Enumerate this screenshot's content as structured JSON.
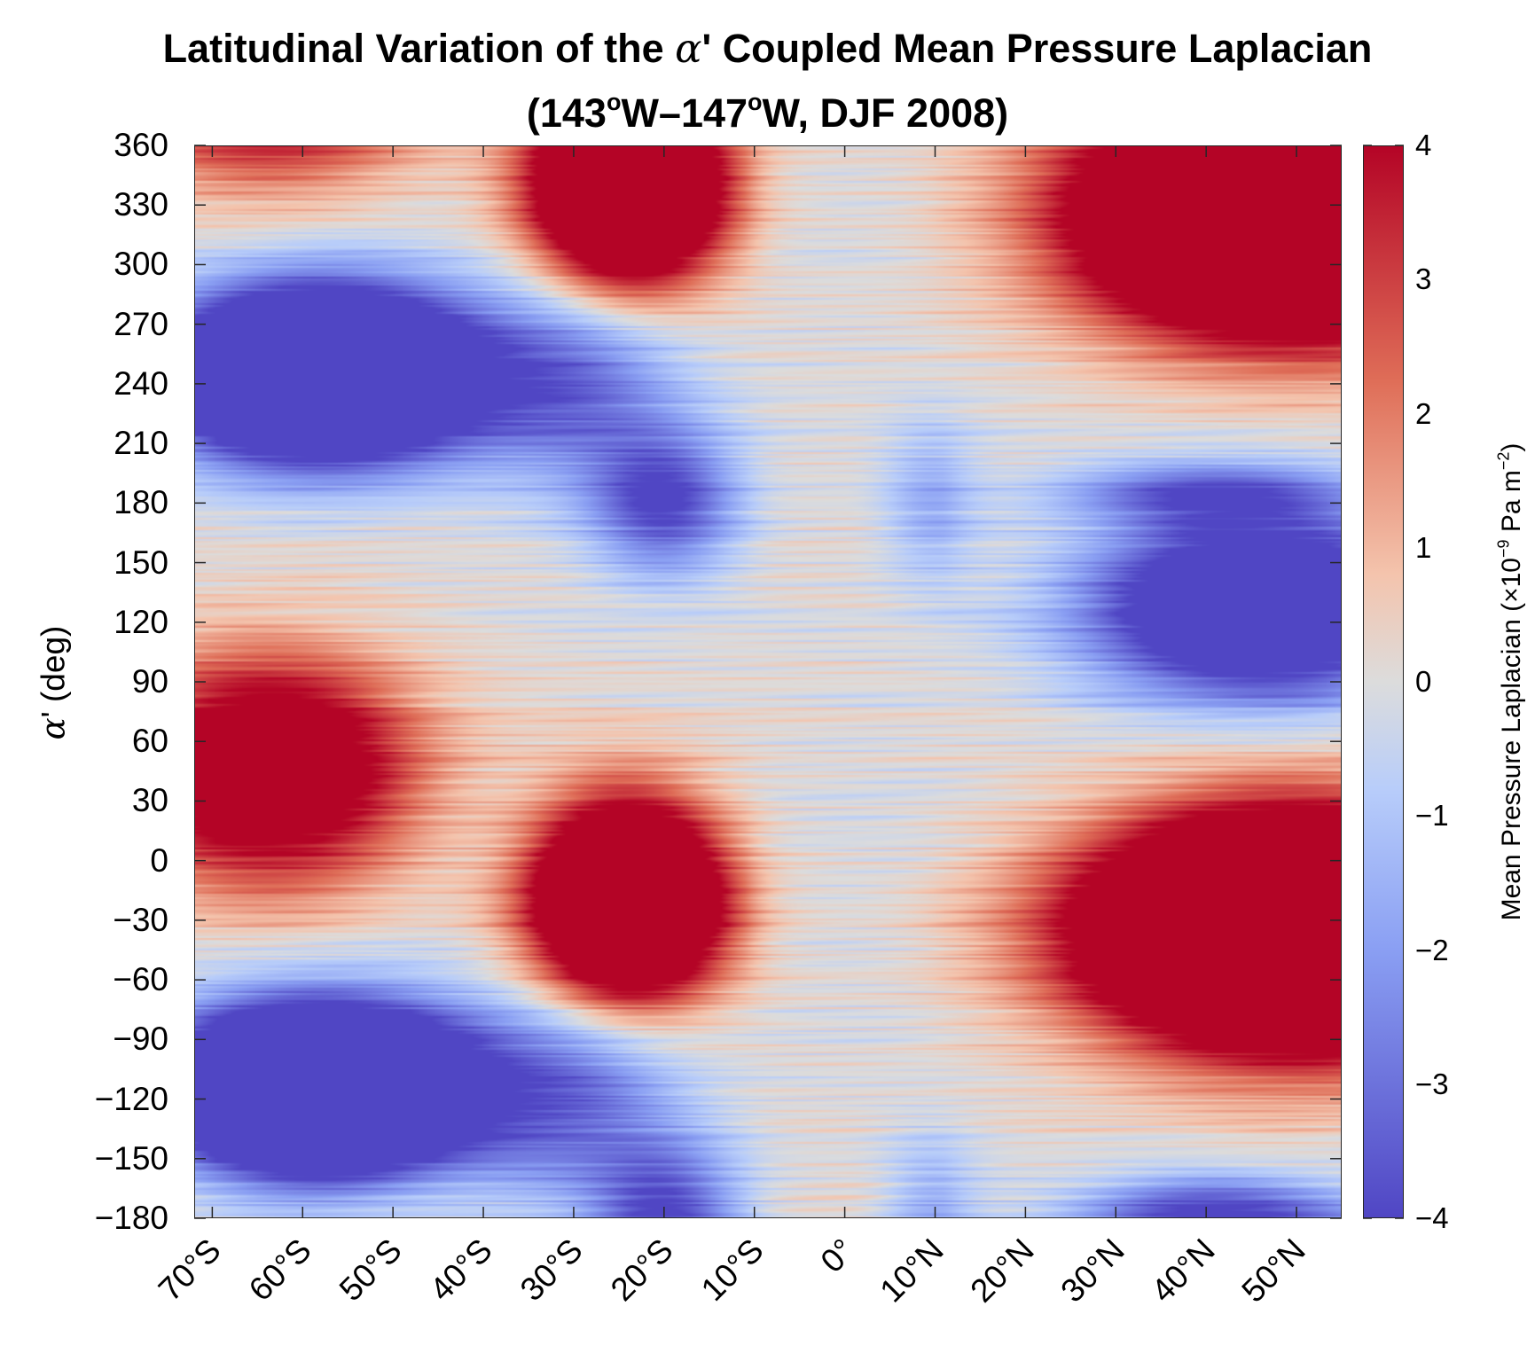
{
  "chart_data": {
    "type": "heatmap",
    "title_line1_before": "Latitudinal Variation of the ",
    "title_alpha": "α",
    "title_line1_after": "' Coupled Mean Pressure Laplacian",
    "title_line2_a": "(143",
    "title_line2_b": "W–147",
    "title_line2_c": "W, DJF 2008)",
    "degree_symbol": "o",
    "ylabel_alpha": "α",
    "ylabel_rest": "' (deg)",
    "xlim": [
      -72,
      55
    ],
    "ylim": [
      -180,
      360
    ],
    "x_ticks": [
      -70,
      -60,
      -50,
      -40,
      -30,
      -20,
      -10,
      0,
      10,
      20,
      30,
      40,
      50
    ],
    "x_tick_labels": [
      "70°S",
      "60°S",
      "50°S",
      "40°S",
      "30°S",
      "20°S",
      "10°S",
      "0°",
      "10°N",
      "20°N",
      "30°N",
      "40°N",
      "50°N"
    ],
    "y_ticks": [
      360,
      330,
      300,
      270,
      240,
      210,
      180,
      150,
      120,
      90,
      60,
      30,
      0,
      -30,
      -60,
      -90,
      -120,
      -150,
      -180
    ],
    "y_tick_labels": [
      "360",
      "330",
      "300",
      "270",
      "240",
      "210",
      "180",
      "150",
      "120",
      "90",
      "60",
      "30",
      "0",
      "−30",
      "−60",
      "−90",
      "−120",
      "−150",
      "−180"
    ],
    "colorbar": {
      "colormap": "diverging blue-white-red",
      "low_color": "#5046c4",
      "mid_color": "#dcdcdc",
      "high_color": "#b40426",
      "clim": [
        -4,
        4
      ],
      "ticks": [
        4,
        3,
        2,
        1,
        0,
        -1,
        -2,
        -3,
        -4
      ],
      "tick_labels": [
        "4",
        "3",
        "2",
        "1",
        "0",
        "−1",
        "−2",
        "−3",
        "−4"
      ],
      "label_main": "Mean Pressure Laplacian (×10",
      "label_exp1": "−9",
      "label_mid": "  Pa m",
      "label_exp2": "−2",
      "label_end": ")"
    },
    "features": [
      {
        "desc": "positive max",
        "lat": -62,
        "alpha": 45,
        "value": 4
      },
      {
        "desc": "negative max",
        "lat": -55,
        "alpha": 245,
        "value": -4
      },
      {
        "desc": "negative max",
        "lat": -55,
        "alpha": -115,
        "value": -4
      },
      {
        "desc": "positive max",
        "lat": -22,
        "alpha": -20,
        "value": 4
      },
      {
        "desc": "positive max",
        "lat": -22,
        "alpha": 335,
        "value": 4
      },
      {
        "desc": "negative",
        "lat": -20,
        "alpha": 180,
        "value": -3
      },
      {
        "desc": "positive max",
        "lat": 45,
        "alpha": 320,
        "value": 4
      },
      {
        "desc": "negative max",
        "lat": 43,
        "alpha": 130,
        "value": -4
      },
      {
        "desc": "positive max",
        "lat": 45,
        "alpha": -40,
        "value": 4
      }
    ]
  }
}
